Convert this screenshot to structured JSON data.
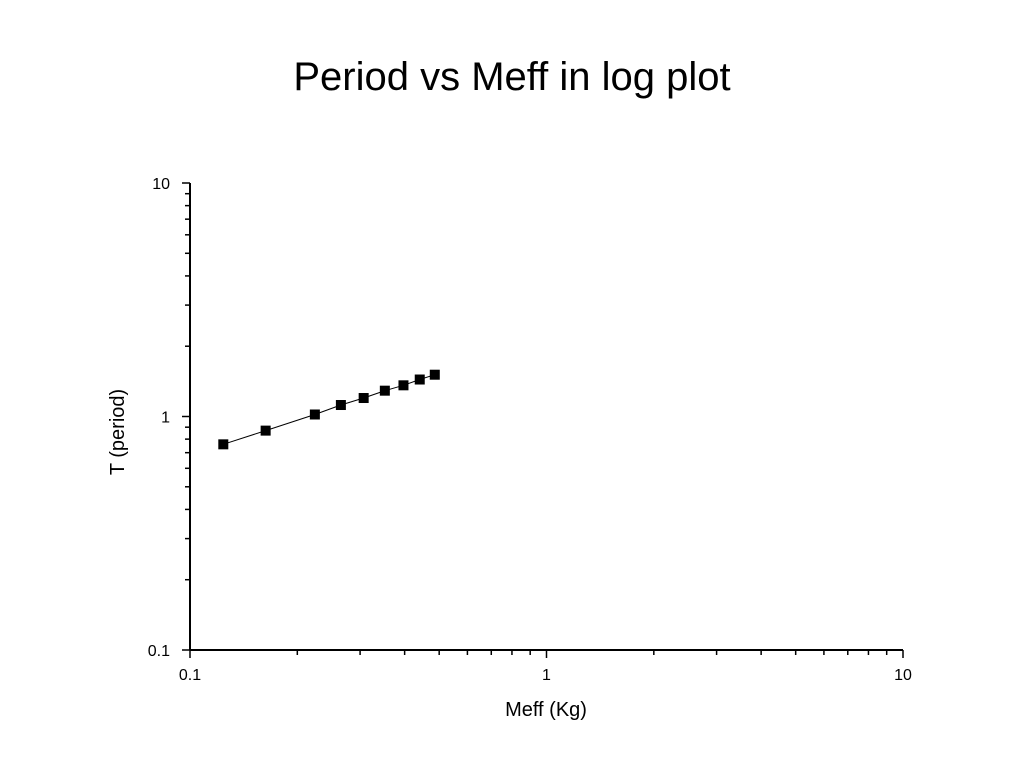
{
  "slide": {
    "title": "Period vs Meff in log plot"
  },
  "chart_data": {
    "type": "scatter",
    "xlabel": "Meff (Kg)",
    "ylabel": "T (period)",
    "xscale": "log",
    "yscale": "log",
    "xlim": [
      0.1,
      10
    ],
    "ylim": [
      0.1,
      10
    ],
    "x_ticks": [
      "0.1",
      "1",
      "10"
    ],
    "y_ticks": [
      "0.1",
      "1",
      "10"
    ],
    "grid": false,
    "legend": "none",
    "line_connects_points": true,
    "marker": "square",
    "color": "#000000",
    "series": [
      {
        "x": [
          0.124,
          0.163,
          0.224,
          0.265,
          0.307,
          0.352,
          0.397,
          0.441,
          0.486
        ],
        "y": [
          0.76,
          0.87,
          1.02,
          1.12,
          1.2,
          1.29,
          1.36,
          1.44,
          1.51
        ]
      }
    ]
  }
}
